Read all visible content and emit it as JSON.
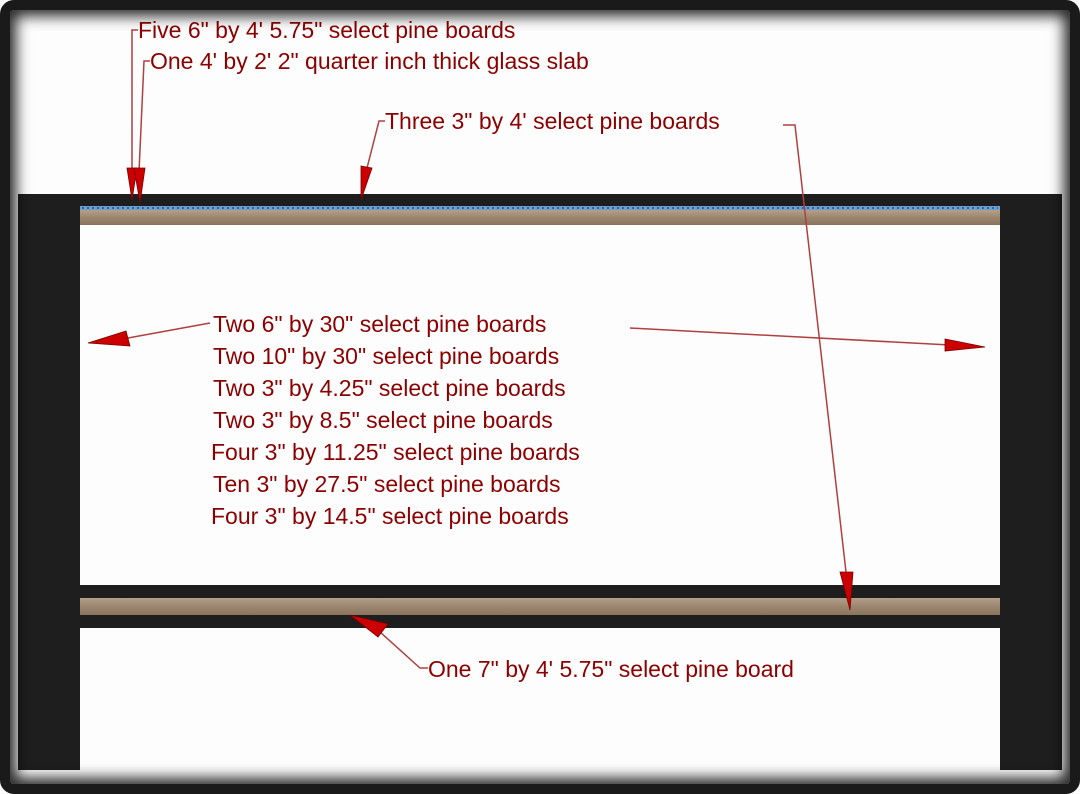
{
  "labels": {
    "top_boards": "Five 6\" by 4' 5.75\" select pine boards",
    "glass": "One 4' by 2' 2\" quarter inch thick glass slab",
    "top_rails": "Three 3\" by 4' select pine boards",
    "parts_list": [
      "Two 6\" by 30\" select pine boards",
      "Two 10\" by 30\" select pine boards",
      "Two 3\" by 4.25\" select pine boards",
      "Two 3\" by 8.5\" select pine boards",
      "Four 3\" by 11.25\" select pine boards",
      "Ten 3\" by 27.5\" select pine boards",
      "Four 3\" by 14.5\" select pine boards"
    ],
    "shelf": "One 7\" by 4' 5.75\" select pine board"
  },
  "colors": {
    "label_text": "#8b0000",
    "arrow": "#cc0000",
    "leader_line": "#b04040",
    "table_black": "#1e1e1e",
    "pine_wood": "#a08c76",
    "glass": "#6a9fd4"
  }
}
